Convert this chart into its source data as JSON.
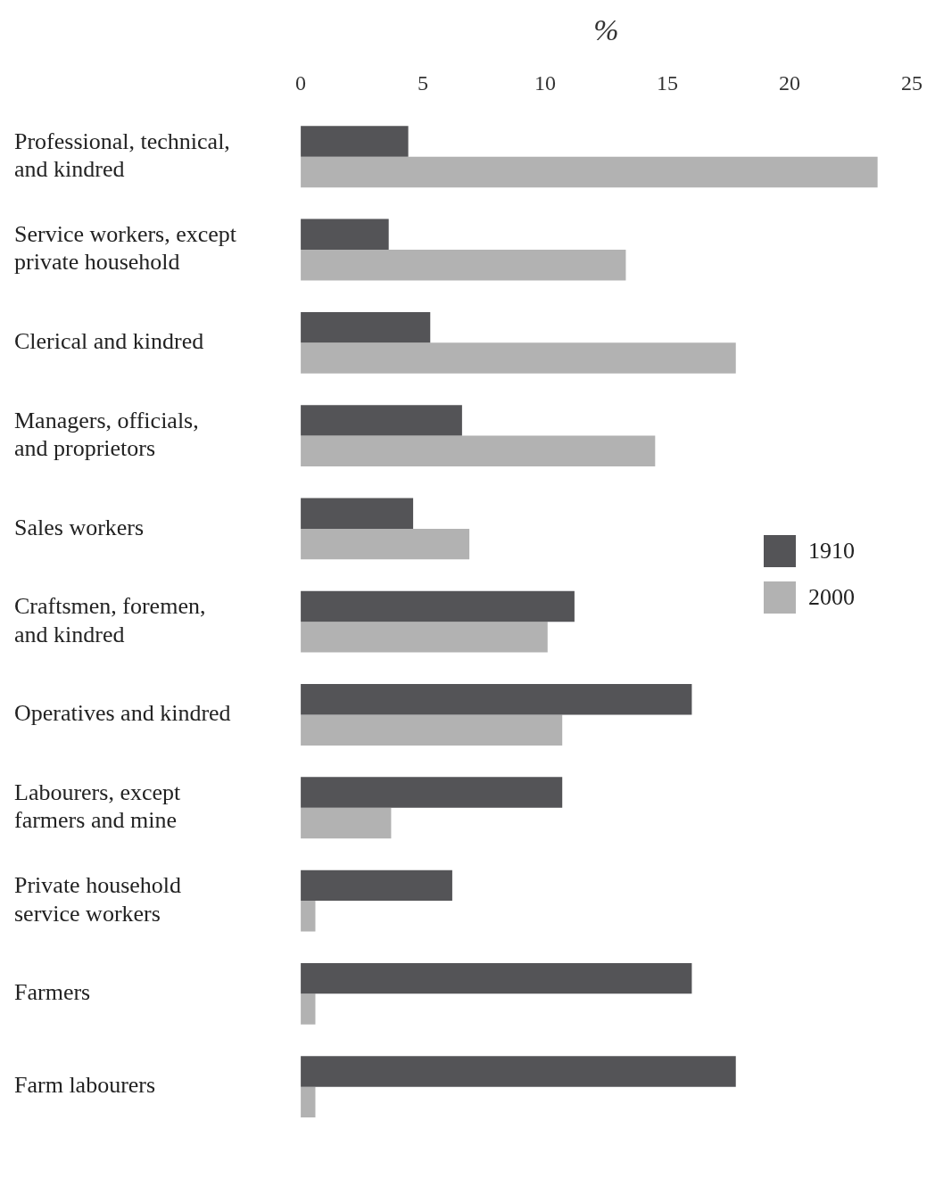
{
  "chart_data": {
    "type": "bar",
    "orientation": "horizontal",
    "xlabel": "%",
    "categories": [
      "Professional, technical, and kindred",
      "Service workers, except private household",
      "Clerical and kindred",
      "Managers, officials, and proprietors",
      "Sales workers",
      "Craftsmen, foremen, and kindred",
      "Operatives and kindred",
      "Labourers, except farmers and mine",
      "Private household service workers",
      "Farmers",
      "Farm labourers"
    ],
    "series": [
      {
        "name": "1910",
        "color": "#545457",
        "values": [
          4.4,
          3.6,
          5.3,
          6.6,
          4.6,
          11.2,
          16.0,
          10.7,
          6.2,
          16.0,
          17.8
        ]
      },
      {
        "name": "2000",
        "color": "#b2b2b2",
        "values": [
          23.6,
          13.3,
          17.8,
          14.5,
          6.9,
          10.1,
          10.7,
          3.7,
          0.6,
          0.6,
          0.6
        ]
      }
    ],
    "xlim": [
      0,
      25
    ],
    "xticks": [
      0,
      5,
      10,
      15,
      20,
      25
    ],
    "grid": false,
    "legend": "right"
  }
}
